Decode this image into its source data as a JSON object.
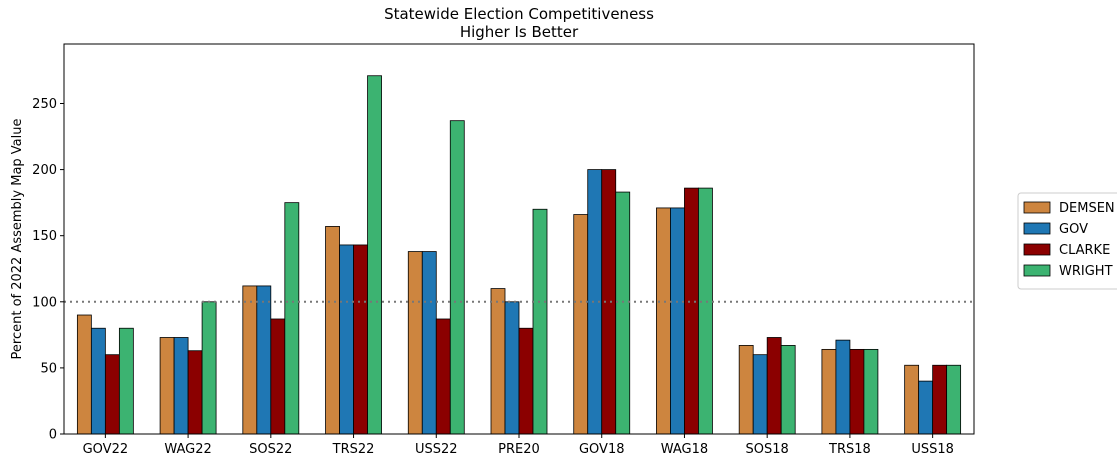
{
  "chart_data": {
    "type": "bar",
    "title": "Statewide Election Competitiveness",
    "subtitle": "Higher Is Better",
    "xlabel": "",
    "ylabel": "Percent of 2022 Assembly Map Value",
    "ylim": [
      0,
      295
    ],
    "yticks": [
      0,
      50,
      100,
      150,
      200,
      250
    ],
    "reference_line": {
      "y": 100,
      "style": "dotted",
      "color": "#777777"
    },
    "grid": false,
    "legend_position": "right, outside plot",
    "categories": [
      "GOV22",
      "WAG22",
      "SOS22",
      "TRS22",
      "USS22",
      "PRE20",
      "GOV18",
      "WAG18",
      "SOS18",
      "TRS18",
      "USS18"
    ],
    "series": [
      {
        "name": "DEMSEN",
        "color": "#cd853f",
        "values": [
          90,
          73,
          112,
          157,
          138,
          110,
          166,
          171,
          67,
          64,
          52
        ]
      },
      {
        "name": "GOV",
        "color": "#1f77b4",
        "values": [
          80,
          73,
          112,
          143,
          138,
          100,
          200,
          171,
          60,
          71,
          40
        ]
      },
      {
        "name": "CLARKE",
        "color": "#8b0000",
        "values": [
          60,
          63,
          87,
          143,
          87,
          80,
          200,
          186,
          73,
          64,
          52
        ]
      },
      {
        "name": "WRIGHT",
        "color": "#3cb371",
        "values": [
          80,
          100,
          175,
          271,
          237,
          170,
          183,
          186,
          67,
          64,
          52
        ]
      }
    ]
  }
}
